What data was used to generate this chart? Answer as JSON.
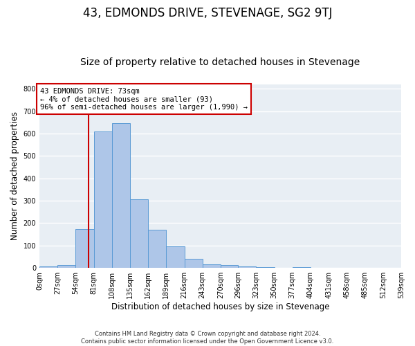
{
  "title": "43, EDMONDS DRIVE, STEVENAGE, SG2 9TJ",
  "subtitle": "Size of property relative to detached houses in Stevenage",
  "xlabel": "Distribution of detached houses by size in Stevenage",
  "ylabel": "Number of detached properties",
  "bin_edges": [
    0,
    27,
    54,
    81,
    108,
    135,
    162,
    189,
    216,
    243,
    270,
    296,
    323,
    350,
    377,
    404,
    431,
    458,
    485,
    512,
    539
  ],
  "bar_heights": [
    7,
    14,
    175,
    610,
    645,
    305,
    170,
    97,
    40,
    15,
    12,
    7,
    5,
    0,
    5,
    0,
    0,
    0,
    0,
    0
  ],
  "bar_color": "#aec6e8",
  "bar_edge_color": "#5b9bd5",
  "background_color": "#e8eef4",
  "property_size": 73,
  "vline_color": "#cc0000",
  "annotation_line1": "43 EDMONDS DRIVE: 73sqm",
  "annotation_line2": "← 4% of detached houses are smaller (93)",
  "annotation_line3": "96% of semi-detached houses are larger (1,990) →",
  "annotation_box_color": "white",
  "annotation_box_edge": "#cc0000",
  "ylim": [
    0,
    820
  ],
  "yticks": [
    0,
    100,
    200,
    300,
    400,
    500,
    600,
    700,
    800
  ],
  "tick_labels": [
    "0sqm",
    "27sqm",
    "54sqm",
    "81sqm",
    "108sqm",
    "135sqm",
    "162sqm",
    "189sqm",
    "216sqm",
    "243sqm",
    "270sqm",
    "296sqm",
    "323sqm",
    "350sqm",
    "377sqm",
    "404sqm",
    "431sqm",
    "458sqm",
    "485sqm",
    "512sqm",
    "539sqm"
  ],
  "footer": "Contains HM Land Registry data © Crown copyright and database right 2024.\nContains public sector information licensed under the Open Government Licence v3.0.",
  "grid_color": "#ffffff",
  "title_fontsize": 12,
  "subtitle_fontsize": 10,
  "axis_label_fontsize": 8.5,
  "tick_fontsize": 7,
  "annotation_fontsize": 7.5
}
